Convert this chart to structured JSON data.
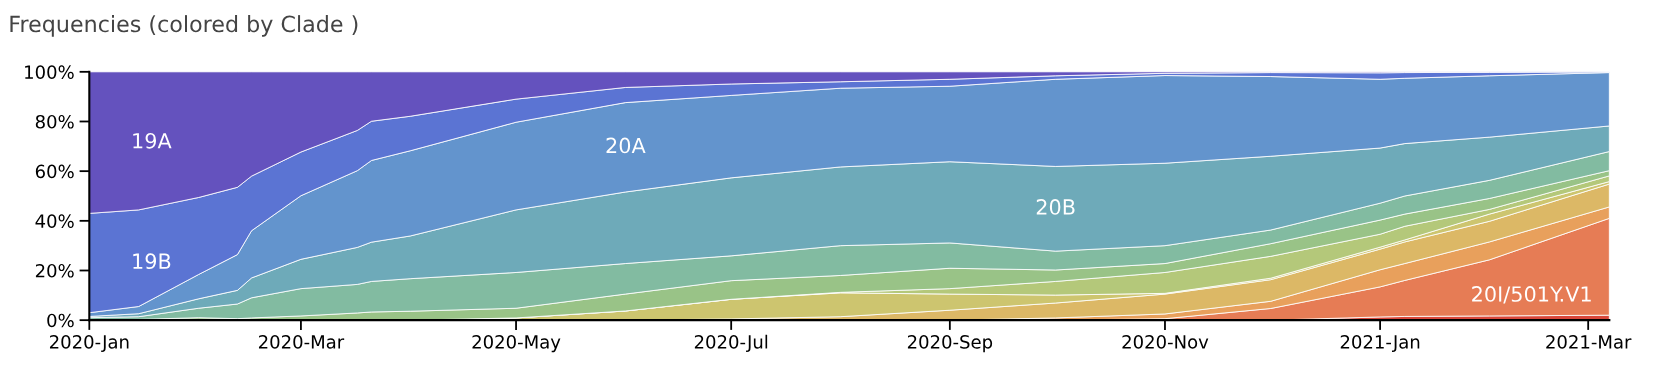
{
  "chart_data": {
    "type": "area",
    "stacked": true,
    "title": "Frequencies (colored by Clade )",
    "x": [
      "2020-01-01",
      "2020-01-15",
      "2020-02-01",
      "2020-02-12",
      "2020-02-16",
      "2020-03-01",
      "2020-03-17",
      "2020-03-21",
      "2020-04-01",
      "2020-05-01",
      "2020-06-01",
      "2020-07-01",
      "2020-08-01",
      "2020-09-01",
      "2020-10-01",
      "2020-11-01",
      "2020-12-01",
      "2021-01-01",
      "2021-01-08",
      "2021-02-01",
      "2021-03-07"
    ],
    "xlim": [
      "2020-01-01",
      "2021-03-07"
    ],
    "xticks": [
      {
        "value": "2020-01-01",
        "label": "2020-Jan"
      },
      {
        "value": "2020-03-01",
        "label": "2020-Mar"
      },
      {
        "value": "2020-05-01",
        "label": "2020-May"
      },
      {
        "value": "2020-07-01",
        "label": "2020-Jul"
      },
      {
        "value": "2020-09-01",
        "label": "2020-Sep"
      },
      {
        "value": "2020-11-01",
        "label": "2020-Nov"
      },
      {
        "value": "2021-01-01",
        "label": "2021-Jan"
      },
      {
        "value": "2021-03-01",
        "label": "2021-Mar"
      }
    ],
    "ylim": [
      0,
      100
    ],
    "yticks": [
      {
        "value": 0,
        "label": "0%"
      },
      {
        "value": 20,
        "label": "20%"
      },
      {
        "value": 40,
        "label": "40%"
      },
      {
        "value": 60,
        "label": "60%"
      },
      {
        "value": 80,
        "label": "80%"
      },
      {
        "value": 100,
        "label": "100%"
      }
    ],
    "grid": false,
    "series": [
      {
        "color": "#d8473a",
        "values": [
          0,
          0,
          0,
          0,
          0,
          0,
          0,
          0,
          0,
          0,
          0,
          0,
          0,
          0,
          0,
          0,
          0,
          1.3,
          1.5,
          1.7,
          2
        ]
      },
      {
        "name": "20I/501Y.V1",
        "color": "#e67c55",
        "values": [
          0,
          0,
          0,
          0,
          0,
          0,
          0,
          0,
          0,
          0,
          0,
          0,
          0,
          0,
          0,
          0.6,
          4.7,
          12.1,
          14.5,
          22.6,
          39
        ]
      },
      {
        "color": "#e8a05c",
        "values": [
          0,
          0,
          0,
          0,
          0,
          0,
          0,
          0,
          0,
          0,
          0,
          0,
          0,
          0,
          0.9,
          1.9,
          2.9,
          6.9,
          6.8,
          7.2,
          4.6
        ]
      },
      {
        "color": "#dcb866",
        "values": [
          0,
          0,
          0,
          0,
          0,
          0,
          0,
          0,
          0,
          0,
          0,
          0.5,
          1.4,
          4,
          6,
          8,
          8.7,
          8.3,
          8.7,
          8.3,
          9.2
        ]
      },
      {
        "color": "#cdc56f",
        "values": [
          0,
          0,
          0,
          0,
          0,
          0,
          0,
          0,
          0,
          0.9,
          3.7,
          7.9,
          9.6,
          6.5,
          3.2,
          0.3,
          0.6,
          0.8,
          0.8,
          2.9,
          1
        ]
      },
      {
        "color": "#b4c87a",
        "values": [
          0,
          0,
          0,
          0,
          0,
          0,
          0,
          0,
          0,
          0,
          0,
          0,
          0.2,
          2.2,
          5.5,
          8.4,
          8.8,
          5.2,
          5.5,
          1.9,
          2.3
        ]
      },
      {
        "color": "#99c387",
        "values": [
          0,
          0.3,
          1,
          0.6,
          0.9,
          1.7,
          2.9,
          3.3,
          3.6,
          3.9,
          6.8,
          7.5,
          6.8,
          8.2,
          4.6,
          3.6,
          5.1,
          5.7,
          4.9,
          4.4,
          2.1
        ]
      },
      {
        "color": "#82bba1",
        "values": [
          1,
          1.1,
          3.8,
          5.9,
          8.1,
          11,
          11.5,
          12.3,
          13.1,
          14.4,
          12.3,
          10,
          12,
          10.2,
          7.6,
          7.2,
          5.5,
          6.8,
          7.3,
          7.3,
          7.7
        ]
      },
      {
        "name": "20B",
        "color": "#6eaab9",
        "values": [
          0.5,
          1.2,
          3.8,
          5.5,
          8,
          11.8,
          14.9,
          15.8,
          17.2,
          25.2,
          28.8,
          31.4,
          31.7,
          32.7,
          34.1,
          33.2,
          29.7,
          22.2,
          21.1,
          17.4,
          10.3
        ]
      },
      {
        "name": "20A",
        "color": "#6394cd",
        "values": [
          1.5,
          2.9,
          9.8,
          14.4,
          19,
          25.6,
          30.9,
          32.9,
          34.3,
          35.3,
          36,
          33.2,
          31.7,
          30.4,
          35.1,
          35.3,
          32.1,
          27.7,
          26.3,
          24.7,
          21.5
        ]
      },
      {
        "name": "19B",
        "color": "#5b74d3",
        "values": [
          40,
          38.9,
          31,
          27.1,
          22,
          17.6,
          16.2,
          15.8,
          13.9,
          9.3,
          6.1,
          4.6,
          2.6,
          2.8,
          1.4,
          0.9,
          1.6,
          2.6,
          2.3,
          1.4,
          0.3
        ]
      },
      {
        "name": "19A",
        "color": "#6452be",
        "values": [
          57,
          55.6,
          50.6,
          46.5,
          42,
          32.3,
          23.6,
          19.9,
          17.9,
          11,
          6.3,
          4.9,
          4,
          3,
          1.6,
          0.6,
          0.3,
          0.4,
          0.3,
          0.2,
          0
        ]
      }
    ]
  }
}
